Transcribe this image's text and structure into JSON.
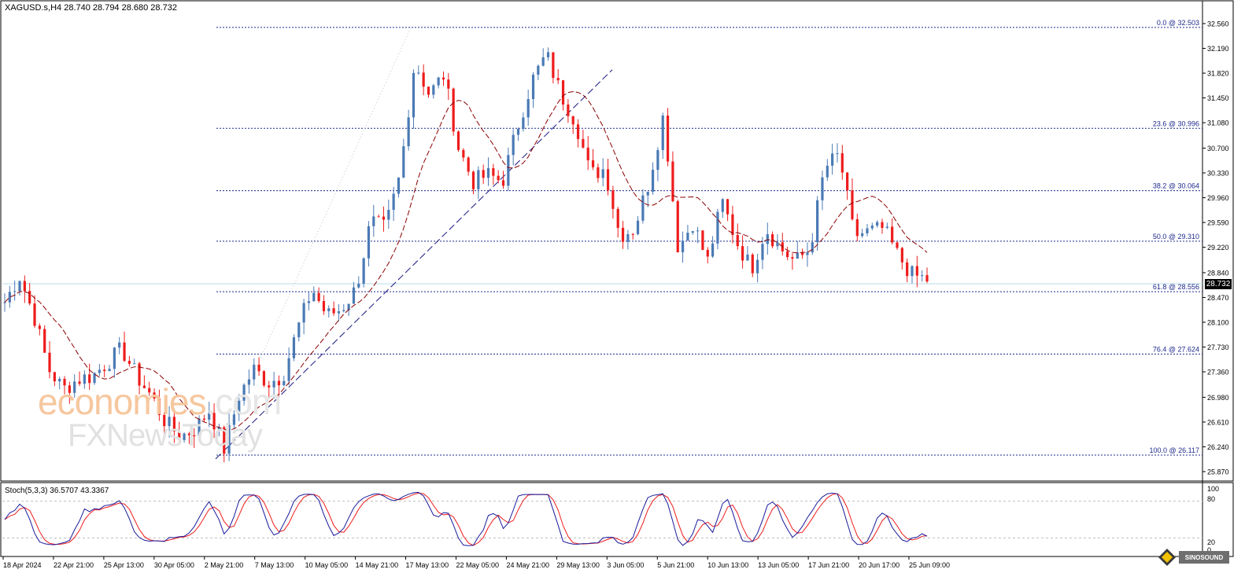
{
  "header": {
    "symbol": "XAGUSD.s,H4",
    "ohlc": "28.740 28.794 28.680 28.732"
  },
  "current_price": "28.732",
  "watermark": {
    "part_a": "economies",
    "part_b": ".com",
    "line2": "FXNewsToday"
  },
  "corner_logo_text": "SINOSOUND",
  "colors": {
    "bull": "#4a7ab5",
    "bear": "#ee1c1c",
    "ma": "#8b0000",
    "fib": "#1f2a8c",
    "stoch_main": "#1a1a9c",
    "stoch_signal": "#ee1c1c"
  },
  "stoch": {
    "label": "Stoch(5,3,3) 36.5707 43.3367",
    "levels": [
      80,
      20
    ],
    "axis_labels": [
      "100",
      "80",
      "20",
      "0"
    ]
  },
  "chart_data": {
    "type": "candlestick",
    "ylim": [
      25.87,
      32.56
    ],
    "y_ticks": [
      "32.560",
      "32.190",
      "31.820",
      "31.450",
      "31.080",
      "30.700",
      "30.330",
      "29.960",
      "29.590",
      "29.220",
      "28.840",
      "28.470",
      "28.100",
      "27.730",
      "27.360",
      "26.980",
      "26.610",
      "26.240",
      "25.870"
    ],
    "x_labels": [
      "18 Apr 2024",
      "22 Apr 21:00",
      "25 Apr 13:00",
      "30 Apr 05:00",
      "2 May 21:00",
      "7 May 13:00",
      "10 May 05:00",
      "14 May 21:00",
      "17 May 13:00",
      "22 May 05:00",
      "24 May 21:00",
      "29 May 13:00",
      "3 Jun 05:00",
      "5 Jun 21:00",
      "10 Jun 13:00",
      "13 Jun 05:00",
      "17 Jun 21:00",
      "20 Jun 17:00",
      "25 Jun 09:00"
    ],
    "fibonacci": [
      {
        "label": "0.0 @ 32.503",
        "price": 32.503
      },
      {
        "label": "23.6 @ 30.996",
        "price": 30.996
      },
      {
        "label": "38.2 @ 30.064",
        "price": 30.064
      },
      {
        "label": "50.0 @ 29.310",
        "price": 29.31
      },
      {
        "label": "61.8 @ 28.556",
        "price": 28.556
      },
      {
        "label": "76.4 @ 27.624",
        "price": 27.624
      },
      {
        "label": "100.0 @ 26.117",
        "price": 26.117
      }
    ],
    "close_path": [
      28.4,
      28.8,
      28.2,
      27.4,
      27.1,
      27.25,
      27.3,
      27.5,
      27.7,
      27.3,
      27.0,
      26.6,
      26.4,
      26.5,
      26.8,
      26.2,
      27.0,
      27.4,
      27.2,
      27.3,
      28.0,
      28.6,
      28.2,
      28.3,
      28.6,
      29.6,
      29.5,
      30.3,
      32.0,
      31.5,
      31.8,
      30.7,
      30.2,
      30.3,
      30.2,
      31.0,
      31.7,
      32.1,
      31.5,
      31.1,
      30.3,
      30.4,
      29.4,
      29.5,
      30.2,
      31.2,
      29.2,
      29.6,
      29.0,
      29.9,
      29.3,
      28.9,
      29.5,
      29.2,
      29.0,
      29.2,
      30.4,
      30.6,
      29.4,
      29.45,
      29.5,
      29.1,
      28.8,
      28.74
    ]
  }
}
